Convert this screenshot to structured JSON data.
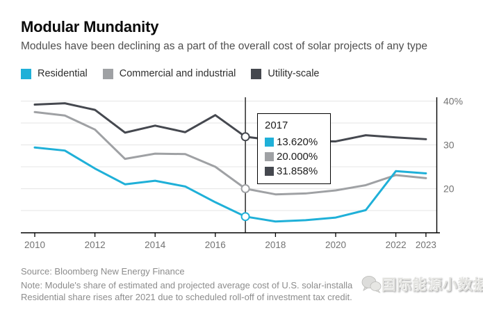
{
  "header": {
    "title": "Modular Mundanity",
    "subtitle": "Modules have been declining as a part of the overall cost of solar projects of any type"
  },
  "colors": {
    "residential": "#1fb0d8",
    "commercial": "#9fa1a4",
    "utility": "#45484f",
    "grid": "#e9e9e9",
    "axis": "#000000",
    "tick_label": "#737373"
  },
  "legend": {
    "items": [
      {
        "label": "Residential",
        "color": "#1fb0d8"
      },
      {
        "label": "Commercial and industrial",
        "color": "#9fa1a4"
      },
      {
        "label": "Utility-scale",
        "color": "#45484f"
      }
    ]
  },
  "tooltip": {
    "title": "2017",
    "rows": [
      {
        "series": "Residential",
        "value": "13.620%",
        "color": "#1fb0d8"
      },
      {
        "series": "Commercial and industrial",
        "value": "20.000%",
        "color": "#9fa1a4"
      },
      {
        "series": "Utility-scale",
        "value": "31.858%",
        "color": "#45484f"
      }
    ]
  },
  "chart_data": {
    "type": "line",
    "title": "Modular Mundanity",
    "x": [
      2010,
      2011,
      2012,
      2013,
      2014,
      2015,
      2016,
      2017,
      2018,
      2019,
      2020,
      2021,
      2022,
      2023
    ],
    "series": [
      {
        "name": "Residential",
        "color": "#1fb0d8",
        "values": [
          29.4,
          28.7,
          24.6,
          21.0,
          21.8,
          20.5,
          16.9,
          13.62,
          12.5,
          12.8,
          13.4,
          15.1,
          24.0,
          23.5
        ]
      },
      {
        "name": "Commercial and industrial",
        "color": "#9fa1a4",
        "values": [
          37.5,
          36.7,
          33.5,
          26.8,
          28.0,
          27.9,
          25.0,
          20.0,
          18.7,
          18.9,
          19.6,
          20.8,
          23.1,
          22.4
        ]
      },
      {
        "name": "Utility-scale",
        "color": "#45484f",
        "values": [
          39.2,
          39.5,
          38.0,
          32.8,
          34.4,
          32.9,
          36.8,
          31.858,
          31.0,
          30.9,
          30.8,
          32.2,
          31.7,
          31.3
        ]
      }
    ],
    "x_tick_labels": [
      "2010",
      "2012",
      "2014",
      "2016",
      "2018",
      "2020",
      "2022",
      "2023"
    ],
    "y_ticks": [
      40,
      30,
      20
    ],
    "y_tick_labels": [
      "40%",
      "30",
      "20"
    ],
    "gridlines": [
      40,
      35,
      30,
      25,
      20,
      15
    ],
    "ylim": [
      10,
      40.8
    ],
    "grid": true,
    "legend_position": "top",
    "crosshair_x": 2017
  },
  "footer": {
    "source": "Source: Bloomberg New Energy Finance",
    "note_line1": "Note: Module's share of estimated and projected average cost of U.S. solar-installa",
    "note_line2": "Residential share rises after 2021 due to scheduled roll-off of investment tax credit."
  },
  "watermark": {
    "text": "国际能源小数据"
  }
}
